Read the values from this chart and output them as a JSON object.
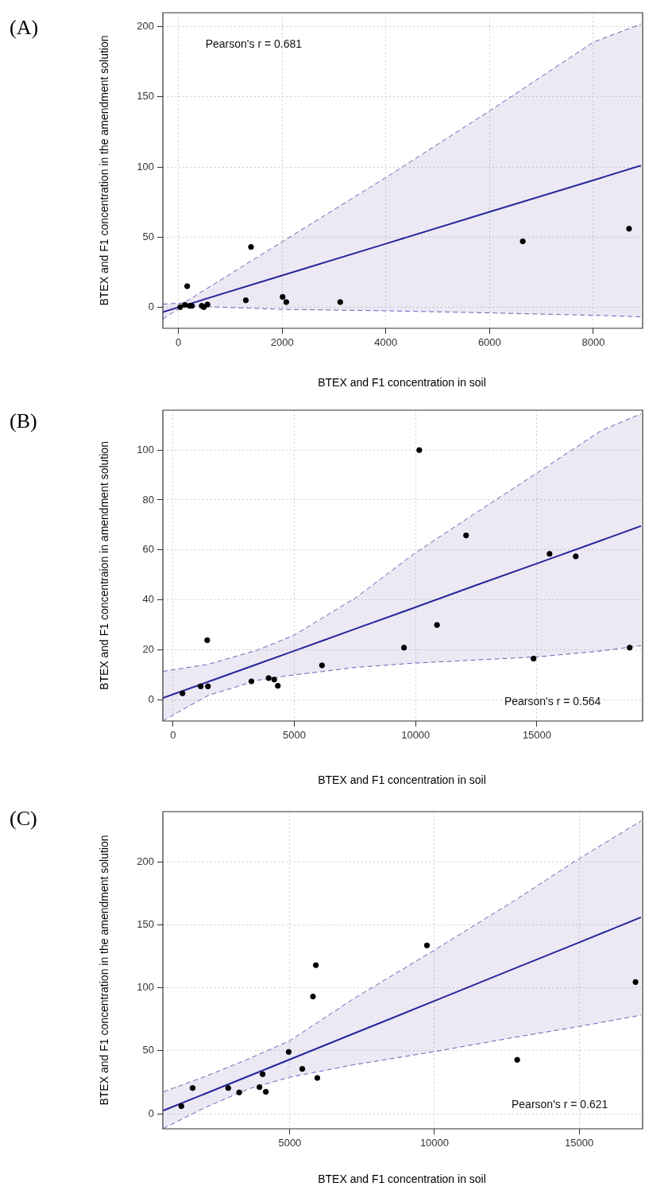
{
  "chart_data": [
    {
      "type": "scatter",
      "title": "(A)",
      "xlabel": "BTEX and F1 concentration in soil",
      "ylabel": "BTEX and F1 concentration in the amendment solution",
      "xlim": [
        -300,
        8920
      ],
      "ylim": [
        -15,
        210
      ],
      "xticks": [
        0,
        2000,
        4000,
        6000,
        8000
      ],
      "yticks": [
        0,
        50,
        100,
        150,
        200
      ],
      "grid": true,
      "annotations": [
        "Pearson's r = 0.681"
      ],
      "series": [
        {
          "color": "#000000",
          "marker": "circle",
          "x": [
            35,
            125,
            170,
            215,
            260,
            450,
            490,
            560,
            1300,
            1400,
            2010,
            2080,
            3120,
            6640,
            8690
          ],
          "values": [
            0.1,
            1.7,
            15,
            1,
            1,
            1,
            0.1,
            2,
            5,
            43,
            7.4,
            3.7,
            3.7,
            47,
            56
          ]
        },
        {
          "type": "line",
          "color": "#26269b",
          "line_style": "solid",
          "marker": "none",
          "x": [
            -300,
            100,
            2000,
            4000,
            6000,
            8000,
            8920
          ],
          "values": [
            -3.4,
            1.1,
            22.7,
            45.3,
            68,
            90.6,
            101
          ],
          "lower": [
            -8.3,
            1,
            -1.5,
            -2.5,
            -4,
            -5.7,
            -6.8
          ],
          "upper": [
            2.3,
            3,
            46.7,
            92.5,
            140,
            189,
            202
          ]
        },
        {
          "type": "line",
          "color": "#6464b8",
          "line_style": "dashed",
          "marker": "none",
          "x": [
            -300,
            100,
            2000,
            4000,
            6000,
            8000,
            8920
          ],
          "values": [
            -8.3,
            1,
            -1.5,
            -2.5,
            -4,
            -5.7,
            -6.8
          ]
        },
        {
          "type": "line",
          "color": "#6464b8",
          "line_style": "dashed",
          "marker": "none",
          "x": [
            -300,
            100,
            2000,
            4000,
            6000,
            8000,
            8920
          ],
          "values": [
            2.3,
            3,
            46.7,
            92.5,
            140,
            189,
            202
          ]
        }
      ]
    },
    {
      "type": "scatter",
      "title": "(B)",
      "xlabel": "BTEX and F1 concentration in soil",
      "ylabel": "BTEX and F1 concentraion in amendment solution",
      "xlim": [
        -420,
        19290
      ],
      "ylim": [
        -8.6,
        116
      ],
      "xticks": [
        0,
        5000,
        10000,
        15000
      ],
      "yticks": [
        0,
        20,
        40,
        60,
        80,
        100
      ],
      "grid": true,
      "annotations": [
        "Pearson's r = 0.564"
      ],
      "series": [
        {
          "color": "#000000",
          "marker": "circle",
          "x": [
            390,
            1140,
            1440,
            1410,
            3230,
            3940,
            4170,
            4320,
            6140,
            9520,
            10150,
            10880,
            12080,
            14860,
            15520,
            16600,
            18820
          ],
          "values": [
            2.5,
            5.3,
            5.3,
            23.8,
            7.3,
            8.6,
            8,
            5.5,
            13.7,
            20.8,
            100,
            29.9,
            65.8,
            16.4,
            58.4,
            57.4,
            20.8
          ]
        },
        {
          "type": "line",
          "color": "#26269b",
          "line_style": "solid",
          "marker": "none",
          "x": [
            -420,
            1440,
            3470,
            4990,
            6140,
            7530,
            9940,
            12600,
            15140,
            17680,
            19290
          ],
          "values": [
            0.6,
            7.1,
            14.2,
            19.5,
            23.5,
            28.4,
            36.8,
            46.2,
            55,
            63.9,
            69.6
          ],
          "lower": [
            -8.5,
            1.6,
            7.7,
            9.9,
            11.2,
            12.9,
            14.6,
            15.9,
            17.2,
            19.5,
            21.6
          ],
          "upper": [
            11.3,
            14.1,
            19.8,
            25.8,
            32.6,
            40.8,
            58.5,
            75.6,
            91.7,
            108,
            114.5
          ]
        },
        {
          "type": "line",
          "color": "#6464b8",
          "line_style": "dashed",
          "marker": "none",
          "x": [
            -420,
            1440,
            3470,
            4990,
            6140,
            7530,
            9940,
            12600,
            15140,
            17680,
            19290
          ],
          "values": [
            -8.5,
            1.6,
            7.7,
            9.9,
            11.2,
            12.9,
            14.6,
            15.9,
            17.2,
            19.5,
            21.6
          ]
        },
        {
          "type": "line",
          "color": "#6464b8",
          "line_style": "dashed",
          "marker": "none",
          "x": [
            -420,
            1440,
            3470,
            4990,
            6140,
            7530,
            9940,
            12600,
            15140,
            17680,
            19290
          ],
          "values": [
            11.3,
            14.1,
            19.8,
            25.8,
            32.6,
            40.8,
            58.5,
            75.6,
            91.7,
            108,
            114.5
          ]
        }
      ]
    },
    {
      "type": "scatter",
      "title": "(C)",
      "xlabel": "BTEX and F1 concentration in soil",
      "ylabel": "BTEX and F1 concentration in the amendment solution",
      "xlim": [
        610,
        17140
      ],
      "ylim": [
        -12,
        240
      ],
      "xticks": [
        5000,
        10000,
        15000
      ],
      "yticks": [
        0,
        50,
        100,
        150,
        200
      ],
      "grid": true,
      "annotations": [
        "Pearson's r = 0.621"
      ],
      "series": [
        {
          "color": "#000000",
          "marker": "circle",
          "x": [
            1250,
            1640,
            2870,
            3250,
            3950,
            4060,
            4170,
            4960,
            5430,
            5800,
            5900,
            5950,
            9740,
            12860,
            16950
          ],
          "values": [
            6,
            20.4,
            20.4,
            16.9,
            21.1,
            31.4,
            17.4,
            49.1,
            35.6,
            93.1,
            118,
            28.4,
            133.7,
            42.8,
            104.6
          ]
        },
        {
          "type": "line",
          "color": "#26269b",
          "line_style": "solid",
          "marker": "none",
          "x": [
            630,
            2030,
            3540,
            5000,
            7220,
            10000,
            12730,
            14980,
            17140
          ],
          "values": [
            2.5,
            15.5,
            29.5,
            43.1,
            63.8,
            89.6,
            115,
            135.9,
            156
          ],
          "lower": [
            -11.7,
            4.4,
            19.5,
            29,
            38.9,
            49.3,
            60.5,
            69.2,
            78.3
          ],
          "upper": [
            17.4,
            29.2,
            43.2,
            58,
            91.6,
            130,
            168.8,
            202.4,
            232.6
          ]
        },
        {
          "type": "line",
          "color": "#6464b8",
          "line_style": "dashed",
          "marker": "none",
          "x": [
            630,
            2030,
            3540,
            5000,
            7220,
            10000,
            12730,
            14980,
            17140
          ],
          "values": [
            -11.7,
            4.4,
            19.5,
            29,
            38.9,
            49.3,
            60.5,
            69.2,
            78.3
          ]
        },
        {
          "type": "line",
          "color": "#6464b8",
          "line_style": "dashed",
          "marker": "none",
          "x": [
            630,
            2030,
            3540,
            5000,
            7220,
            10000,
            12730,
            14980,
            17140
          ],
          "values": [
            17.4,
            29.2,
            43.2,
            58,
            91.6,
            130,
            168.8,
            202.4,
            232.6
          ]
        }
      ]
    }
  ]
}
